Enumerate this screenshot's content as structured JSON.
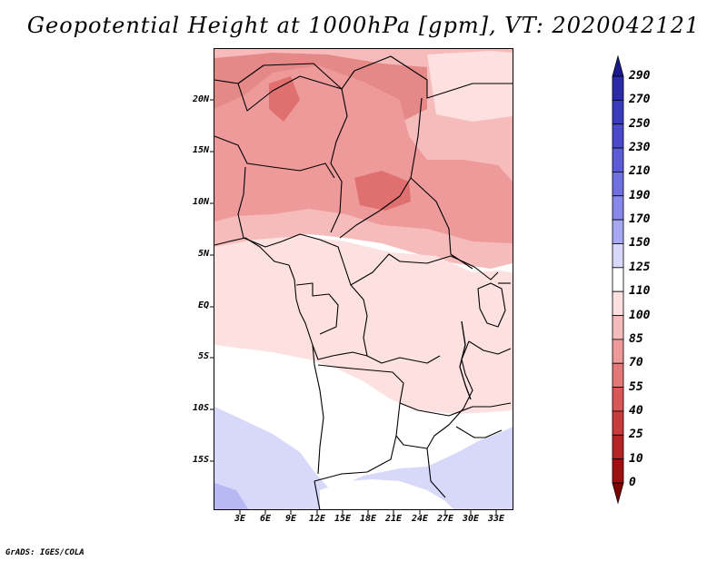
{
  "title": "Geopotential Height at 1000hPa [gpm], VT: 2020042121",
  "footer": "GrADS: IGES/COLA",
  "map": {
    "lat_labels": [
      "20N",
      "15N",
      "10N",
      "5N",
      "EQ",
      "5S",
      "10S",
      "15S"
    ],
    "lon_labels": [
      "3E",
      "6E",
      "9E",
      "12E",
      "15E",
      "18E",
      "21E",
      "24E",
      "27E",
      "30E",
      "33E"
    ],
    "lon_range_deg": [
      0,
      35
    ],
    "lat_range_deg": [
      -20,
      25
    ]
  },
  "colorbar": {
    "labels": [
      "290",
      "270",
      "250",
      "230",
      "210",
      "190",
      "170",
      "150",
      "125",
      "110",
      "100",
      "85",
      "70",
      "55",
      "40",
      "25",
      "10",
      "0"
    ],
    "colors": [
      "#1a1a8c",
      "#2b2ba8",
      "#3b3bbd",
      "#4a4acb",
      "#5c5cd6",
      "#7070e0",
      "#8888ea",
      "#a8a8f2",
      "#d8d8fa",
      "#ffffff",
      "#fde0e0",
      "#f6bcbc",
      "#ee9a9a",
      "#e47878",
      "#d85858",
      "#c83c3c",
      "#b52424",
      "#9c1010",
      "#800000"
    ]
  },
  "fill_colors": {
    "blue_light": "#d8d8fa",
    "blue_mid": "#b8b8f4",
    "white": "#ffffff",
    "pink_light": "#fde0e0",
    "pink_mid": "#f6bcbc",
    "salmon": "#ee9a9a",
    "rose": "#e48888",
    "red_dark": "#e07070"
  }
}
